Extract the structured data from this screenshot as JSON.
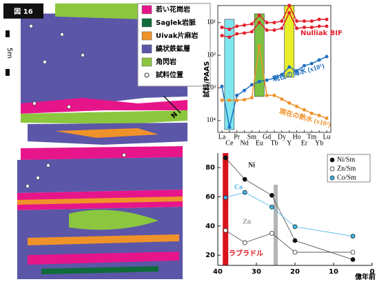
{
  "map": {
    "title": "図 16",
    "scale": "5m",
    "north": "N",
    "legend": [
      {
        "label": "若い花崗岩",
        "color": "#e6168a"
      },
      {
        "label": "Saglek岩脈",
        "color": "#0f6b3a"
      },
      {
        "label": "Uivak片麻岩",
        "color": "#f0922a"
      },
      {
        "label": "縞状鉄鉱層",
        "color": "#5b56a8"
      },
      {
        "label": "角閃岩",
        "color": "#8cc63f"
      },
      {
        "label": "試料位置",
        "color": "#ffffff"
      }
    ]
  },
  "chart_data": [
    {
      "type": "line",
      "ylabel": "試料/PAAS",
      "log": true,
      "y_inverted": true,
      "categories": [
        "La",
        "Ce",
        "Pr",
        "Nd",
        "Sm",
        "Eu",
        "Gd",
        "Tb",
        "Dy",
        "Y",
        "Ho",
        "Er",
        "Tm",
        "Yb",
        "Lu"
      ],
      "ylim": [
        3,
        23000
      ],
      "yticks": [
        {
          "value": 10,
          "label": "10¹"
        },
        {
          "value": 100,
          "label": "10²"
        },
        {
          "value": 1000,
          "label": "10³"
        },
        {
          "value": 10000,
          "label": "10⁴"
        }
      ],
      "series": [
        {
          "name": "Nulliak BIF",
          "color": "#e3202a",
          "values": [
            14,
            16,
            13,
            12,
            11,
            6,
            10,
            10,
            9,
            3,
            9,
            9,
            9,
            8,
            8
          ]
        },
        {
          "color": "#e3202a",
          "values": [
            25,
            28,
            22,
            21,
            19,
            10,
            17,
            17,
            15,
            5,
            15,
            14,
            14,
            13,
            13
          ]
        },
        {
          "name": "現在の海水 (x10⁵)",
          "color": "#1f6fc0",
          "values": [
            900,
            16000,
            1700,
            1200,
            800,
            640,
            580,
            500,
            390,
            230,
            300,
            210,
            180,
            140,
            110
          ]
        },
        {
          "name": "現在の熱水 (x10²)",
          "color": "#f0922a",
          "values": [
            2400,
            2400,
            2400,
            2300,
            2000,
            52,
            1700,
            1700,
            2200,
            2900,
            3700,
            4700,
            6000,
            7000,
            8500
          ]
        }
      ]
    },
    {
      "type": "scatter",
      "xlabel": "億年前",
      "xlim": [
        40,
        0
      ],
      "xticks": [
        40,
        30,
        20,
        10,
        0
      ],
      "ylim": [
        13,
        90
      ],
      "yticks": [
        20,
        40,
        60,
        80
      ],
      "x": [
        38,
        33,
        26,
        20,
        5
      ],
      "series": [
        {
          "name": "Ni/Sm",
          "label": "Ni",
          "color": "#111111",
          "values": [
            86.7,
            72,
            61,
            30,
            17
          ]
        },
        {
          "name": "Zn/Sm",
          "label": "Zn",
          "color": "#ffffff",
          "values": [
            37,
            28.6,
            35,
            22,
            22
          ]
        },
        {
          "name": "Co/Sm",
          "label": "Co",
          "color": "#3fb3e6",
          "values": [
            59.5,
            63,
            53,
            39.5,
            33
          ]
        }
      ],
      "annotation": "ラブラドル"
    }
  ]
}
